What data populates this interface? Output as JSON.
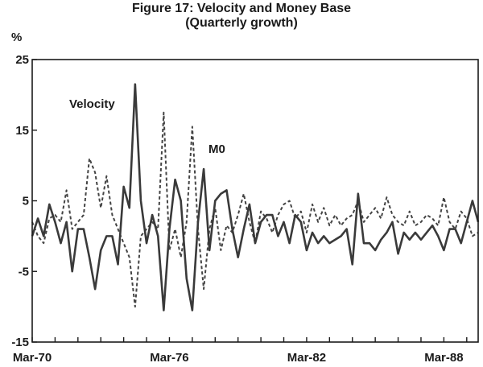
{
  "chart_data": {
    "type": "line",
    "title": "Figure 17: Velocity and Money Base",
    "subtitle": "(Quarterly growth)",
    "ylabel": "%",
    "xlabel": "",
    "ylim": [
      -15,
      25
    ],
    "yticks": [
      25,
      15,
      5,
      -5,
      -15
    ],
    "xlim": [
      0,
      78
    ],
    "xticks": [
      {
        "label": "Mar-70",
        "index": 0
      },
      {
        "label": "Mar-76",
        "index": 24
      },
      {
        "label": "Mar-82",
        "index": 48
      },
      {
        "label": "Mar-88",
        "index": 72
      }
    ],
    "x_start": "Mar-70",
    "frequency": "quarterly",
    "series": [
      {
        "name": "Velocity",
        "style": "solid",
        "color": "#3a3a3a",
        "values": [
          0,
          2.5,
          0,
          4.5,
          2,
          -1,
          2,
          -5,
          1,
          1,
          -3,
          -7.5,
          -2,
          0,
          0,
          -4,
          7,
          4,
          21.5,
          5,
          -1,
          3,
          0,
          -10.5,
          1,
          8,
          5,
          -6,
          -10.5,
          2,
          9.5,
          -2,
          5,
          6,
          6.5,
          1,
          -3,
          1,
          4.5,
          -1,
          2,
          3,
          3,
          0,
          2,
          -1,
          3,
          2,
          -2,
          0.5,
          -1,
          0,
          -1,
          -0.5,
          0,
          1,
          -4,
          6,
          -1,
          -1,
          -2,
          -0.5,
          0.5,
          2,
          -2.5,
          0.5,
          -0.5,
          0.5,
          -0.5,
          0.5,
          1.5,
          0,
          -2,
          1,
          1,
          -1,
          2,
          5,
          2
        ]
      },
      {
        "name": "M0",
        "style": "dashed",
        "color": "#444444",
        "values": [
          2,
          0,
          -1,
          2.5,
          3,
          2,
          6.5,
          1,
          2,
          3,
          11,
          9,
          4,
          8.5,
          3,
          1,
          -1,
          -3,
          -10,
          0,
          1,
          2,
          1,
          17.5,
          -2,
          1,
          -3,
          2,
          15.5,
          1,
          -7.5,
          1,
          4,
          -2,
          1.5,
          0.5,
          3,
          6,
          2,
          -1,
          3.5,
          2.5,
          0.5,
          3,
          4.5,
          5,
          2.5,
          3.5,
          0.5,
          4.5,
          2,
          4,
          1.5,
          3,
          1.5,
          2.5,
          3,
          5,
          2,
          3,
          4,
          2.5,
          5.5,
          3,
          2,
          1.5,
          3.5,
          1.5,
          2,
          3,
          2.5,
          1.5,
          5.5,
          2,
          1,
          3.5,
          2.5,
          0,
          0.5
        ]
      }
    ],
    "annotations": [
      {
        "text": "Velocity",
        "series": "Velocity"
      },
      {
        "text": "M0",
        "series": "M0"
      }
    ]
  }
}
